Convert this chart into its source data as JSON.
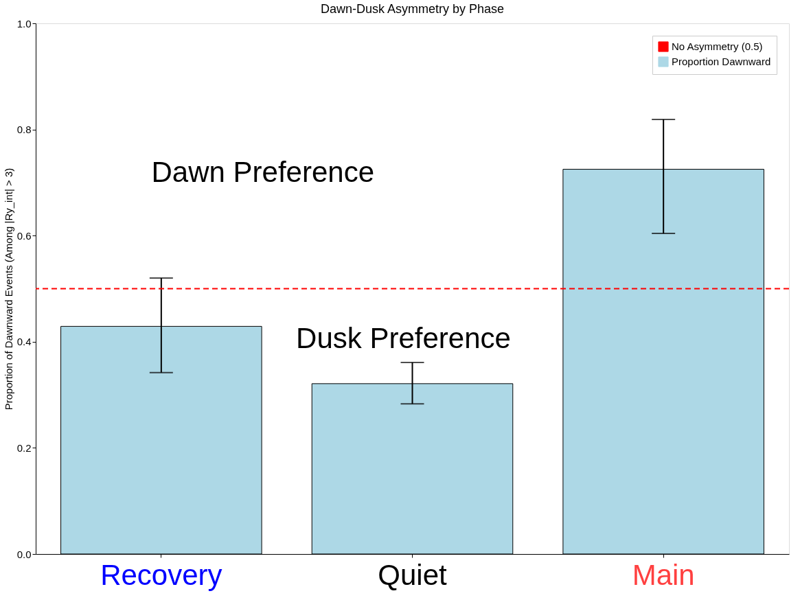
{
  "chart_data": {
    "type": "bar",
    "title": "Dawn-Dusk Asymmetry by Phase",
    "ylabel": "Proportion of Dawnward Events (Among |Ry_int| > 3)",
    "categories": [
      "Recovery",
      "Quiet",
      "Main"
    ],
    "series": [
      {
        "name": "Proportion Dawnward",
        "color": "#add8e6",
        "values": [
          0.429,
          0.321,
          0.725
        ],
        "errors": [
          [
            0.342,
            0.52
          ],
          [
            0.283,
            0.361
          ],
          [
            0.604,
            0.819
          ]
        ]
      }
    ],
    "ylim": [
      0,
      1.0
    ],
    "yticks": [
      {
        "value": 0,
        "label": "0.0"
      },
      0.2,
      0.4,
      0.6,
      0.8,
      {
        "value": 1,
        "label": "1.0"
      }
    ],
    "ref_lines": [
      {
        "axis": "y",
        "value": 0.5,
        "label": "No Asymmetry (0.5)",
        "color": "#ff0000",
        "line_style": "dashed"
      }
    ],
    "annotations": [
      "Dawn Preference",
      "Dusk Preference"
    ],
    "legend": "top right",
    "grid": false
  }
}
